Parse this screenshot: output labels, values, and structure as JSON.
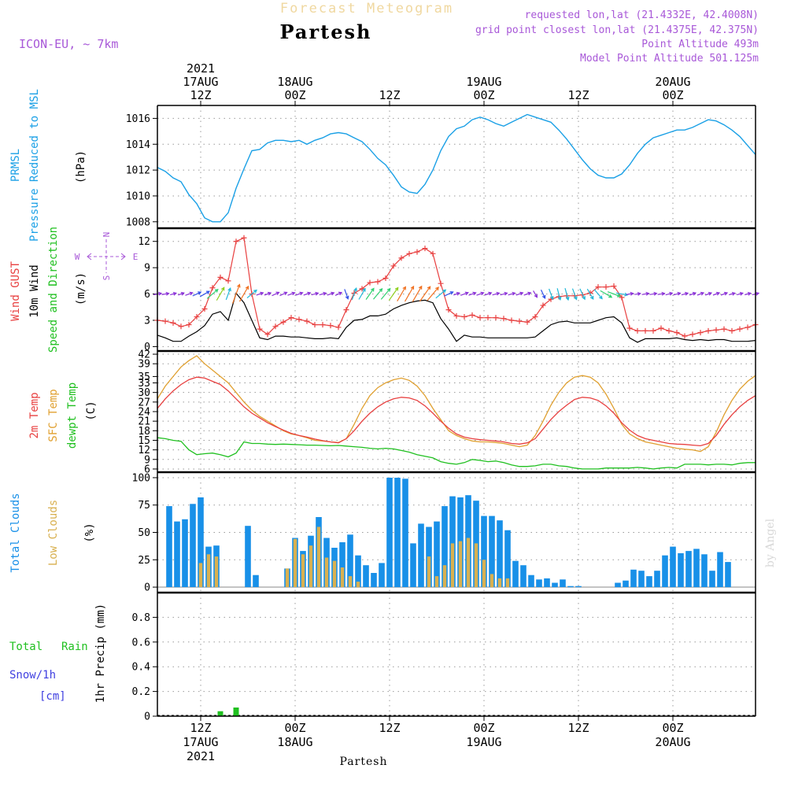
{
  "header": {
    "super_title": "Forecast Meteogram",
    "location": "Partesh",
    "model": "ICON-EU, ~ 7km",
    "requested": "requested lon,lat (21.4332E, 42.4008N)",
    "grid_point": "grid point closest lon,lat (21.4375E, 42.375N)",
    "point_altitude": "Point Altitude 493m",
    "model_altitude": "Model Point Altitude 501.125m"
  },
  "footer": {
    "location": "Partesh",
    "credit": "by Angel"
  },
  "time_axis": {
    "ticks": [
      {
        "h": 0,
        "line1": "12Z",
        "line2": "17AUG",
        "line3": "2021"
      },
      {
        "h": 12,
        "line1": "00Z",
        "line2": "18AUG",
        "line3": ""
      },
      {
        "h": 24,
        "line1": "12Z",
        "line2": "",
        "line3": ""
      },
      {
        "h": 36,
        "line1": "00Z",
        "line2": "19AUG",
        "line3": ""
      },
      {
        "h": 48,
        "line1": "12Z",
        "line2": "",
        "line3": ""
      },
      {
        "h": 60,
        "line1": "00Z",
        "line2": "20AUG",
        "line3": ""
      }
    ]
  },
  "colors": {
    "pressure": "#1aa0e6",
    "gust": "#e84040",
    "wind": "#000000",
    "t2m": "#e84040",
    "tsfc": "#e0a030",
    "dewpt": "#20c020",
    "total_cloud": "#1890e8",
    "low_cloud": "#d8b050",
    "rain": "#20c020",
    "snow": "#4040e0",
    "purple": "#a858d8",
    "title_fade": "#f0d8a0"
  },
  "panels": {
    "pressure": {
      "labels": [
        "PRMSL",
        "Pressure Reduced to MSL",
        "(hPa)"
      ]
    },
    "wind": {
      "labels": [
        "Wind GUST",
        "10m Wind",
        "Speed and Direction",
        "(m/s)"
      ],
      "compass": {
        "n": "N",
        "s": "S",
        "w": "W",
        "e": "E"
      }
    },
    "temp": {
      "labels": [
        "2m Temp",
        "SFC Temp",
        "dewpt Temp",
        "(C)"
      ]
    },
    "clouds": {
      "labels": [
        "Total Clouds",
        "Low Clouds",
        "(%)"
      ]
    },
    "precip": {
      "labels": [
        "Total",
        "Rain",
        "Snow/1h",
        "[cm]",
        "1hr Precip (mm)"
      ]
    }
  },
  "chart_data": [
    {
      "type": "line",
      "name_key": "pressure",
      "x_start_h": -5.5,
      "x_step_h": 1,
      "ylim": [
        1007.5,
        1017
      ],
      "yticks": [
        1008,
        1010,
        1012,
        1014,
        1016
      ],
      "series": [
        {
          "values": [
            1012.2,
            1011.9,
            1011.4,
            1011.1,
            1010.1,
            1009.4,
            1008.3,
            1008.0,
            1008.0,
            1008.7,
            1010.6,
            1012.1,
            1013.5,
            1013.6,
            1014.1,
            1014.3,
            1014.3,
            1014.2,
            1014.3,
            1014.0,
            1014.3,
            1014.5,
            1014.8,
            1014.9,
            1014.8,
            1014.5,
            1014.2,
            1013.6,
            1012.9,
            1012.4,
            1011.6,
            1010.7,
            1010.3,
            1010.2,
            1010.9,
            1012.0,
            1013.5,
            1014.6,
            1015.2,
            1015.4,
            1015.9,
            1016.1,
            1015.9,
            1015.6,
            1015.4,
            1015.7,
            1016.0,
            1016.3,
            1016.1,
            1015.9,
            1015.7,
            1015.1,
            1014.4,
            1013.6,
            1012.8,
            1012.1,
            1011.6,
            1011.4,
            1011.4,
            1011.7,
            1012.4,
            1013.3,
            1014.0,
            1014.5,
            1014.7,
            1014.9,
            1015.1,
            1015.1,
            1015.3,
            1015.6,
            1015.9,
            1015.8,
            1015.5,
            1015.1,
            1014.6,
            1013.9,
            1013.2
          ]
        }
      ]
    },
    {
      "type": "line",
      "name_key": "wind",
      "x_start_h": -5.5,
      "x_step_h": 1,
      "ylim": [
        -0.5,
        13.5
      ],
      "yticks": [
        0,
        3,
        6,
        9,
        12
      ],
      "series": [
        {
          "key": "gust",
          "values": [
            3.0,
            2.9,
            2.7,
            2.3,
            2.5,
            3.4,
            4.3,
            6.7,
            7.9,
            7.5,
            12.0,
            12.4,
            6.0,
            2.0,
            1.4,
            2.3,
            2.8,
            3.3,
            3.1,
            2.9,
            2.5,
            2.5,
            2.4,
            2.2,
            4.2,
            6.1,
            6.6,
            7.3,
            7.4,
            7.8,
            9.2,
            10.1,
            10.6,
            10.8,
            11.2,
            10.6,
            7.2,
            4.2,
            3.5,
            3.4,
            3.6,
            3.3,
            3.3,
            3.3,
            3.2,
            3.0,
            2.9,
            2.8,
            3.4,
            4.7,
            5.4,
            5.7,
            5.8,
            5.8,
            5.9,
            6.1,
            6.8,
            6.8,
            6.9,
            5.6,
            2.1,
            1.8,
            1.8,
            1.8,
            2.1,
            1.8,
            1.6,
            1.2,
            1.4,
            1.6,
            1.8,
            1.9,
            2.0,
            1.8,
            2.0,
            2.2,
            2.5
          ]
        },
        {
          "key": "wind",
          "values": [
            1.3,
            1.0,
            0.6,
            0.6,
            1.2,
            1.7,
            2.4,
            3.7,
            4.0,
            3.0,
            6.1,
            5.0,
            3.0,
            1.0,
            0.8,
            1.2,
            1.2,
            1.1,
            1.1,
            1.0,
            0.9,
            0.9,
            1.0,
            0.9,
            2.2,
            3.0,
            3.1,
            3.5,
            3.5,
            3.7,
            4.3,
            4.7,
            5.0,
            5.2,
            5.3,
            5.0,
            3.2,
            2.0,
            0.6,
            1.3,
            1.1,
            1.1,
            1.0,
            1.0,
            1.0,
            1.0,
            1.0,
            1.0,
            1.1,
            1.8,
            2.5,
            2.8,
            2.9,
            2.7,
            2.7,
            2.7,
            3.0,
            3.3,
            3.4,
            2.7,
            1.0,
            0.5,
            0.9,
            0.9,
            0.9,
            0.9,
            1.0,
            0.8,
            0.7,
            0.8,
            0.7,
            0.8,
            0.8,
            0.6,
            0.6,
            0.6,
            0.7
          ]
        },
        {
          "key": "dir_deg",
          "values": [
            260,
            260,
            255,
            250,
            250,
            245,
            240,
            230,
            210,
            200,
            200,
            210,
            230,
            250,
            250,
            245,
            245,
            250,
            250,
            250,
            255,
            255,
            250,
            245,
            340,
            200,
            210,
            215,
            220,
            220,
            215,
            210,
            210,
            210,
            215,
            220,
            230,
            245,
            250,
            250,
            250,
            250,
            250,
            255,
            255,
            255,
            250,
            250,
            330,
            335,
            340,
            345,
            345,
            340,
            335,
            330,
            320,
            300,
            290,
            280,
            260,
            260,
            260,
            260,
            260,
            255,
            255,
            255,
            250,
            250,
            250,
            250,
            250,
            255,
            255,
            255,
            255
          ]
        }
      ]
    },
    {
      "type": "line",
      "name_key": "temp",
      "x_start_h": -5.5,
      "x_step_h": 1,
      "ylim": [
        5,
        43
      ],
      "yticks": [
        6,
        9,
        12,
        15,
        18,
        21,
        24,
        27,
        30,
        33,
        35,
        39,
        42
      ],
      "series": [
        {
          "key": "tsfc",
          "values": [
            28.0,
            32.0,
            35.0,
            38.0,
            40.0,
            41.5,
            39.0,
            37.0,
            35.0,
            33.0,
            30.0,
            27.0,
            24.5,
            22.5,
            21.0,
            19.5,
            18.0,
            17.0,
            16.5,
            15.8,
            15.0,
            14.8,
            14.5,
            14.3,
            15.5,
            20.0,
            25.0,
            29.0,
            31.5,
            33.0,
            34.0,
            34.5,
            33.8,
            32.0,
            29.0,
            25.0,
            21.5,
            18.0,
            16.5,
            15.5,
            14.8,
            14.5,
            14.5,
            14.3,
            14.0,
            13.5,
            13.0,
            13.5,
            16.5,
            21.0,
            26.0,
            30.0,
            33.0,
            34.8,
            35.3,
            34.8,
            33.0,
            29.5,
            25.0,
            20.0,
            17.0,
            15.5,
            14.5,
            14.0,
            13.5,
            13.0,
            12.5,
            12.2,
            12.0,
            11.5,
            13.0,
            17.5,
            23.0,
            27.5,
            31.0,
            33.5,
            35.3
          ]
        },
        {
          "key": "t2m",
          "values": [
            25.0,
            28.0,
            30.5,
            32.5,
            34.0,
            34.8,
            34.5,
            33.5,
            32.5,
            30.5,
            28.0,
            25.5,
            23.5,
            22.0,
            20.5,
            19.3,
            18.2,
            17.2,
            16.5,
            16.0,
            15.4,
            14.9,
            14.5,
            14.2,
            15.5,
            18.0,
            21.0,
            23.5,
            25.5,
            27.0,
            28.0,
            28.5,
            28.3,
            27.5,
            25.8,
            23.5,
            21.0,
            18.8,
            17.0,
            16.0,
            15.5,
            15.2,
            15.0,
            14.8,
            14.5,
            14.0,
            13.8,
            14.2,
            15.5,
            18.5,
            21.5,
            24.0,
            26.0,
            27.8,
            28.5,
            28.3,
            27.5,
            25.8,
            23.5,
            20.5,
            18.2,
            16.5,
            15.5,
            15.0,
            14.5,
            14.0,
            13.8,
            13.7,
            13.5,
            13.3,
            14.0,
            16.5,
            20.0,
            23.0,
            25.5,
            27.5,
            29.0
          ]
        },
        {
          "key": "dewpt",
          "values": [
            15.8,
            15.5,
            15.0,
            14.7,
            12.0,
            10.5,
            10.8,
            11.0,
            10.5,
            9.8,
            11.0,
            14.5,
            14.0,
            14.0,
            13.8,
            13.7,
            13.8,
            13.7,
            13.6,
            13.5,
            13.5,
            13.4,
            13.3,
            13.4,
            13.2,
            13.0,
            12.8,
            12.5,
            12.3,
            12.5,
            12.3,
            11.8,
            11.3,
            10.5,
            10.0,
            9.5,
            8.3,
            7.8,
            7.5,
            8.0,
            9.0,
            8.7,
            8.3,
            8.5,
            8.0,
            7.3,
            6.8,
            6.8,
            7.0,
            7.5,
            7.5,
            7.0,
            6.8,
            6.3,
            6.0,
            6.0,
            6.0,
            6.3,
            6.3,
            6.3,
            6.3,
            6.5,
            6.3,
            6.0,
            6.3,
            6.5,
            6.3,
            7.5,
            7.5,
            7.5,
            7.3,
            7.5,
            7.5,
            7.3,
            7.8,
            8.0,
            8.0
          ]
        }
      ]
    },
    {
      "type": "bar",
      "name_key": "clouds",
      "x_start_h": -4,
      "x_step_h": 1,
      "ylim": [
        -5,
        105
      ],
      "yticks": [
        0,
        25,
        50,
        75,
        100
      ],
      "series": [
        {
          "key": "total",
          "values": [
            74,
            60,
            62,
            76,
            82,
            37,
            38,
            0,
            0,
            0,
            56,
            11,
            0,
            0,
            0,
            17,
            45,
            33,
            47,
            64,
            45,
            36,
            41,
            48,
            29,
            20,
            13,
            22,
            100,
            100,
            99,
            40,
            58,
            55,
            60,
            74,
            83,
            82,
            84,
            79,
            65,
            65,
            61,
            52,
            24,
            20,
            11,
            7,
            8,
            4,
            7,
            1,
            1,
            0,
            0,
            0,
            0,
            4,
            6,
            16,
            15,
            10,
            15,
            29,
            37,
            31,
            33,
            35,
            30,
            15,
            32,
            23
          ]
        },
        {
          "key": "low",
          "values": [
            0,
            0,
            0,
            0,
            22,
            30,
            28,
            0,
            0,
            0,
            0,
            0,
            0,
            0,
            0,
            17,
            44,
            30,
            38,
            55,
            27,
            24,
            18,
            10,
            5,
            0,
            0,
            0,
            0,
            0,
            0,
            0,
            0,
            28,
            10,
            20,
            40,
            42,
            45,
            40,
            25,
            12,
            8,
            8,
            0,
            0,
            0,
            0,
            0,
            0,
            0,
            0,
            0,
            0,
            0,
            0,
            0,
            0,
            0,
            0,
            0,
            0,
            0,
            0,
            0,
            0,
            0,
            0,
            0,
            0,
            0,
            0
          ]
        }
      ]
    },
    {
      "type": "bar",
      "name_key": "precip",
      "x_start_h": 0,
      "x_step_h": 1,
      "ylim": [
        0,
        1.0
      ],
      "yticks": [
        0,
        0.2,
        0.4,
        0.6,
        0.8
      ],
      "series": [
        {
          "key": "rain",
          "values": [
            0,
            0,
            0.04,
            0,
            0.07
          ]
        }
      ]
    }
  ]
}
